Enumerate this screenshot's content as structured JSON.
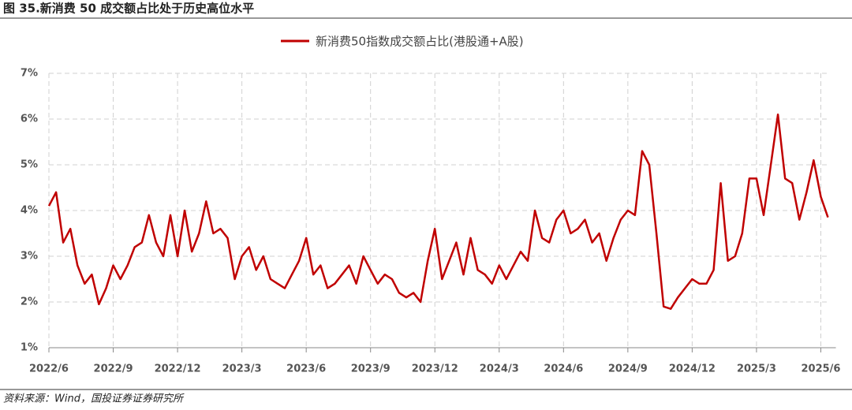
{
  "chart_data": {
    "type": "line",
    "title": "图 35.新消费 50 成交额占比处于历史高位水平",
    "source": "资料来源：Wind，国投证券证券研究所",
    "categories": [
      "2022/6",
      null,
      null,
      null,
      null,
      null,
      null,
      null,
      null,
      "2022/9",
      null,
      null,
      null,
      null,
      null,
      null,
      null,
      null,
      "2022/12",
      null,
      null,
      null,
      null,
      null,
      null,
      null,
      null,
      "2023/3",
      null,
      null,
      null,
      null,
      null,
      null,
      null,
      null,
      "2023/6",
      null,
      null,
      null,
      null,
      null,
      null,
      null,
      null,
      "2023/9",
      null,
      null,
      null,
      null,
      null,
      null,
      null,
      null,
      "2023/12",
      null,
      null,
      null,
      null,
      null,
      null,
      null,
      null,
      "2024/3",
      null,
      null,
      null,
      null,
      null,
      null,
      null,
      null,
      "2024/6",
      null,
      null,
      null,
      null,
      null,
      null,
      null,
      null,
      "2024/9",
      null,
      null,
      null,
      null,
      null,
      null,
      null,
      null,
      "2024/12",
      null,
      null,
      null,
      null,
      null,
      null,
      null,
      null,
      "2025/3",
      null,
      null,
      null,
      null,
      null,
      null,
      null,
      null,
      "2025/6",
      null
    ],
    "series": [
      {
        "name": "新消费50指数成交额占比(港股通+A股)",
        "color": "#c00000",
        "values": [
          4.1,
          4.4,
          3.3,
          3.6,
          2.8,
          2.4,
          2.6,
          1.95,
          2.3,
          2.8,
          2.5,
          2.8,
          3.2,
          3.3,
          3.9,
          3.3,
          3.0,
          3.9,
          3.0,
          4.0,
          3.1,
          3.5,
          4.2,
          3.5,
          3.6,
          3.4,
          2.5,
          3.0,
          3.2,
          2.7,
          3.0,
          2.5,
          2.4,
          2.3,
          2.6,
          2.9,
          3.4,
          2.6,
          2.8,
          2.3,
          2.4,
          2.6,
          2.8,
          2.4,
          3.0,
          2.7,
          2.4,
          2.6,
          2.5,
          2.2,
          2.1,
          2.2,
          2.0,
          2.9,
          3.6,
          2.5,
          2.9,
          3.3,
          2.6,
          3.4,
          2.7,
          2.6,
          2.4,
          2.8,
          2.5,
          2.8,
          3.1,
          2.9,
          4.0,
          3.4,
          3.3,
          3.8,
          4.0,
          3.5,
          3.6,
          3.8,
          3.3,
          3.5,
          2.9,
          3.4,
          3.8,
          4.0,
          3.9,
          5.3,
          5.0,
          3.5,
          1.9,
          1.85,
          2.1,
          2.3,
          2.5,
          2.4,
          2.4,
          2.7,
          4.6,
          2.9,
          3.0,
          3.5,
          4.7,
          4.7,
          3.9,
          5.0,
          6.1,
          4.7,
          4.6,
          3.8,
          4.4,
          5.1,
          4.3,
          3.85
        ]
      }
    ],
    "ylim": [
      1,
      7
    ],
    "yticks": [
      {
        "value": 1,
        "label": "1%"
      },
      {
        "value": 2,
        "label": "2%"
      },
      {
        "value": 3,
        "label": "3%"
      },
      {
        "value": 4,
        "label": "4%"
      },
      {
        "value": 5,
        "label": "5%"
      },
      {
        "value": 6,
        "label": "6%"
      },
      {
        "value": 7,
        "label": "7%"
      }
    ],
    "grid": true
  }
}
